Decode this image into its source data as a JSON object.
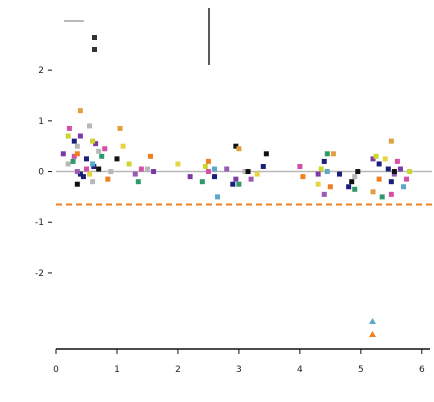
{
  "chart_data": {
    "type": "scatter",
    "title": "",
    "xlabel": "",
    "ylabel": "",
    "xlim": [
      0,
      6.2
    ],
    "ylim": [
      -3.5,
      2.2
    ],
    "x_ticks": [
      0,
      1,
      2,
      3,
      4,
      5,
      6
    ],
    "y_ticks": [
      -2,
      -1,
      0,
      1,
      2
    ],
    "reference_lines": [
      {
        "kind": "horizontal",
        "y": 0,
        "color": "#b8b8b8",
        "style": "solid"
      },
      {
        "kind": "horizontal",
        "y": -0.65,
        "color": "#f07f20",
        "style": "dashed"
      }
    ],
    "legends": [
      {
        "position": "top-left",
        "entries": [
          {
            "label": "",
            "marker": "line",
            "color": "#bbbbbb"
          },
          {
            "label": "",
            "marker": "box",
            "color": "#333333"
          },
          {
            "label": "",
            "marker": "box",
            "color": "#333333"
          }
        ]
      },
      {
        "position": "bottom-right",
        "entries": [
          {
            "label": "",
            "marker": "triangle",
            "color": "#5aa9c8"
          },
          {
            "label": "",
            "marker": "triangle",
            "color": "#f07f20"
          }
        ]
      }
    ],
    "series": [
      {
        "color": "#1c1f7a",
        "points": [
          [
            0.3,
            0.6
          ],
          [
            0.45,
            -0.1
          ],
          [
            0.5,
            0.25
          ],
          [
            0.62,
            0.1
          ],
          [
            0.4,
            -0.05
          ],
          [
            2.6,
            -0.1
          ],
          [
            2.9,
            -0.25
          ],
          [
            3.4,
            0.1
          ],
          [
            4.4,
            0.2
          ],
          [
            4.65,
            -0.05
          ],
          [
            4.8,
            -0.3
          ],
          [
            5.3,
            0.15
          ],
          [
            5.5,
            -0.2
          ],
          [
            5.45,
            0.05
          ]
        ]
      },
      {
        "color": "#b8b8b8",
        "points": [
          [
            0.2,
            0.15
          ],
          [
            0.35,
            0.5
          ],
          [
            0.55,
            0.9
          ],
          [
            0.7,
            0.4
          ],
          [
            0.9,
            0.0
          ],
          [
            0.6,
            -0.2
          ],
          [
            1.5,
            0.05
          ],
          [
            3.1,
            0.0
          ],
          [
            4.9,
            -0.1
          ]
        ]
      },
      {
        "color": "#d44fa8",
        "points": [
          [
            0.22,
            0.85
          ],
          [
            0.3,
            0.3
          ],
          [
            0.5,
            0.05
          ],
          [
            0.8,
            0.45
          ],
          [
            1.4,
            0.05
          ],
          [
            2.5,
            0.0
          ],
          [
            4.0,
            0.1
          ],
          [
            5.6,
            0.2
          ],
          [
            5.75,
            -0.15
          ],
          [
            5.5,
            -0.45
          ]
        ]
      },
      {
        "color": "#7b3aa6",
        "points": [
          [
            0.12,
            0.35
          ],
          [
            0.4,
            0.7
          ],
          [
            0.65,
            0.55
          ],
          [
            1.6,
            0.0
          ],
          [
            2.2,
            -0.1
          ],
          [
            2.95,
            -0.15
          ],
          [
            4.3,
            -0.05
          ],
          [
            5.2,
            0.25
          ],
          [
            5.65,
            0.05
          ]
        ]
      },
      {
        "color": "#2e9a6a",
        "points": [
          [
            0.28,
            0.2
          ],
          [
            0.75,
            0.3
          ],
          [
            1.35,
            -0.2
          ],
          [
            2.4,
            -0.2
          ],
          [
            3.0,
            -0.25
          ],
          [
            4.45,
            0.35
          ],
          [
            4.9,
            -0.35
          ],
          [
            5.35,
            -0.5
          ]
        ]
      },
      {
        "color": "#ccd62f",
        "points": [
          [
            0.2,
            0.7
          ],
          [
            0.6,
            0.6
          ],
          [
            1.2,
            0.15
          ],
          [
            2.45,
            0.1
          ],
          [
            4.35,
            0.05
          ],
          [
            5.25,
            0.3
          ],
          [
            5.8,
            0.0
          ]
        ]
      },
      {
        "color": "#e6d440",
        "points": [
          [
            0.55,
            -0.05
          ],
          [
            1.1,
            0.5
          ],
          [
            2.0,
            0.15
          ],
          [
            3.3,
            -0.05
          ],
          [
            4.3,
            -0.25
          ],
          [
            5.4,
            0.25
          ]
        ]
      },
      {
        "color": "#f07f20",
        "points": [
          [
            0.35,
            0.35
          ],
          [
            0.85,
            -0.15
          ],
          [
            1.55,
            0.3
          ],
          [
            2.5,
            0.2
          ],
          [
            4.05,
            -0.1
          ],
          [
            4.5,
            -0.3
          ],
          [
            5.3,
            -0.15
          ]
        ]
      },
      {
        "color": "#5aa9c8",
        "points": [
          [
            0.6,
            0.15
          ],
          [
            2.6,
            0.05
          ],
          [
            2.65,
            -0.5
          ],
          [
            4.45,
            0.0
          ],
          [
            5.7,
            -0.3
          ]
        ]
      },
      {
        "color": "#9b59b6",
        "points": [
          [
            0.35,
            0.0
          ],
          [
            1.3,
            -0.05
          ],
          [
            2.8,
            0.05
          ],
          [
            3.2,
            -0.15
          ],
          [
            4.4,
            -0.45
          ],
          [
            5.55,
            -0.05
          ]
        ]
      },
      {
        "color": "#111111",
        "points": [
          [
            0.35,
            -0.25
          ],
          [
            0.7,
            0.05
          ],
          [
            1.0,
            0.25
          ],
          [
            2.95,
            0.5
          ],
          [
            3.15,
            0.0
          ],
          [
            3.45,
            0.35
          ],
          [
            4.85,
            -0.2
          ],
          [
            4.95,
            0.0
          ],
          [
            5.55,
            0.0
          ]
        ]
      },
      {
        "color": "#e0a040",
        "points": [
          [
            0.4,
            1.2
          ],
          [
            1.05,
            0.85
          ],
          [
            3.0,
            0.45
          ],
          [
            4.55,
            0.35
          ],
          [
            5.2,
            -0.4
          ],
          [
            5.5,
            0.6
          ]
        ]
      }
    ]
  }
}
